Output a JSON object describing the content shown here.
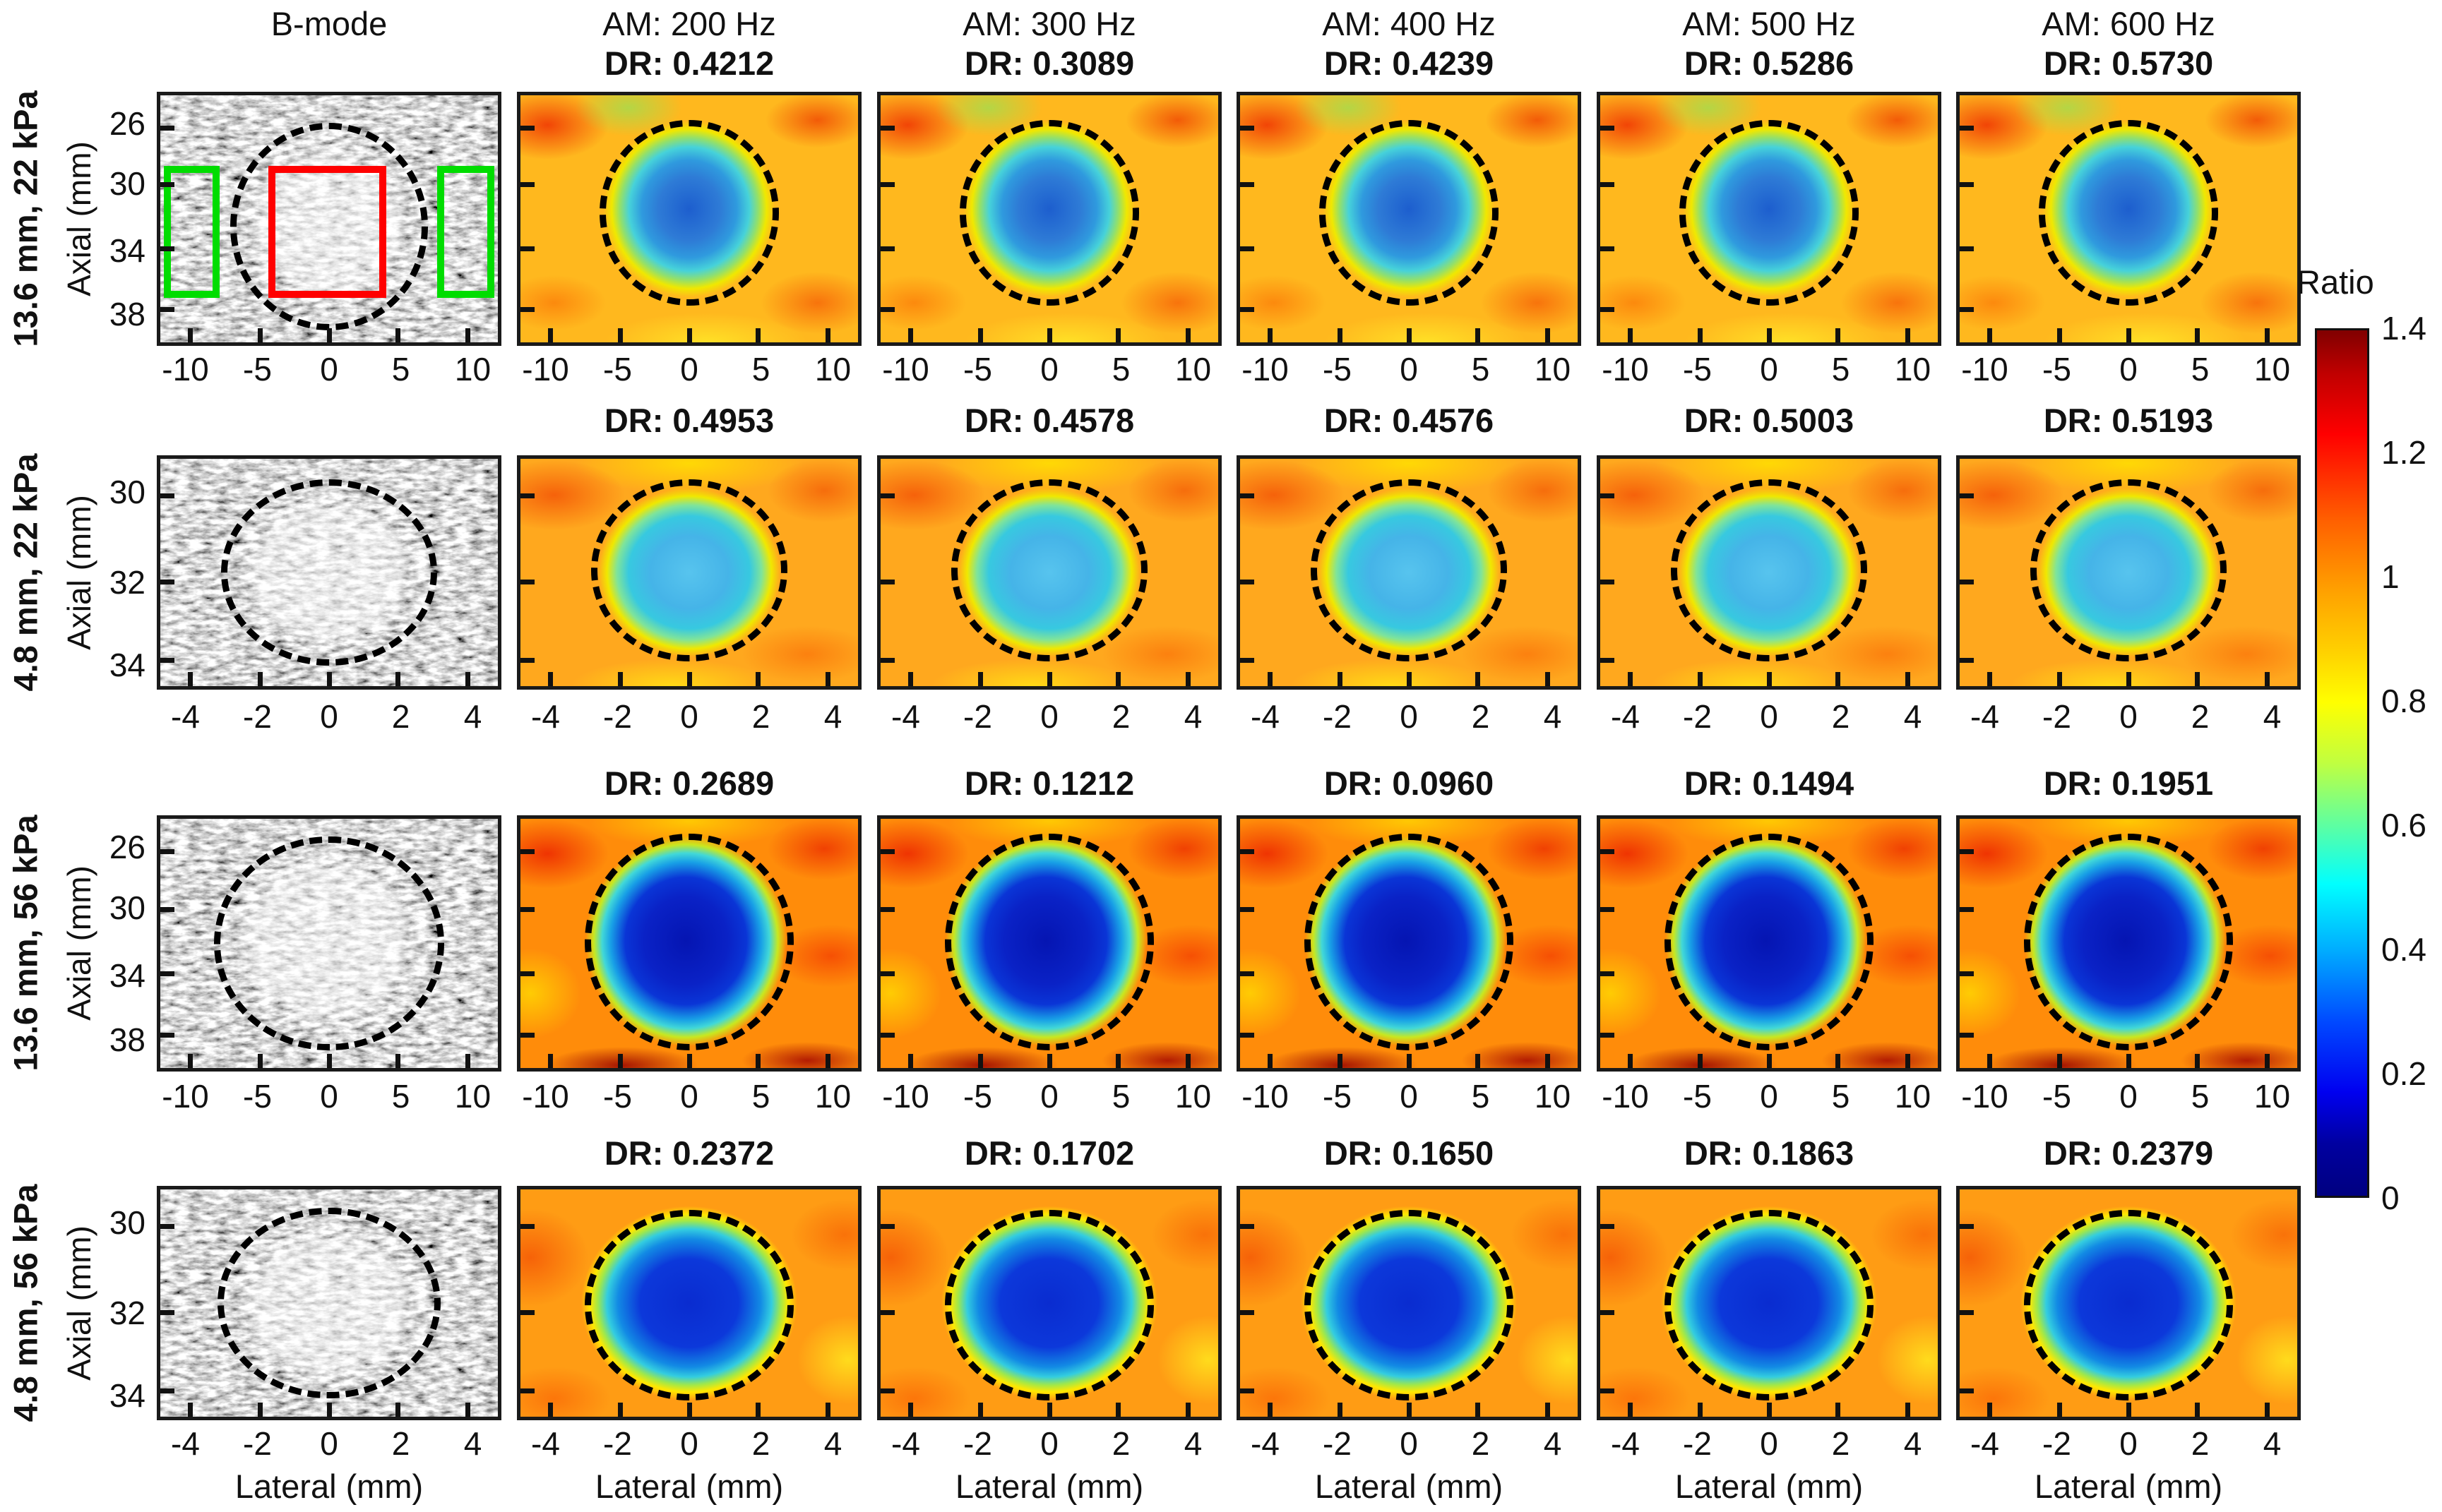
{
  "figure": {
    "columns": [
      {
        "title": "B-mode"
      },
      {
        "title": "AM: 200 Hz"
      },
      {
        "title": "AM: 300 Hz"
      },
      {
        "title": "AM: 400 Hz"
      },
      {
        "title": "AM: 500 Hz"
      },
      {
        "title": "AM: 600 Hz"
      }
    ],
    "rows": [
      {
        "label": "13.6 mm, 22 kPa",
        "ylabel": "Axial (mm)",
        "yticks": [
          "26",
          "30",
          "34",
          "38"
        ],
        "xticks": [
          "-10",
          "-5",
          "0",
          "5",
          "10"
        ],
        "dr_labels": [
          "DR: 0.4212",
          "DR: 0.3089",
          "DR: 0.4239",
          "DR: 0.5286",
          "DR: 0.5730"
        ]
      },
      {
        "label": "4.8 mm, 22 kPa",
        "ylabel": "Axial (mm)",
        "yticks": [
          "30",
          "32",
          "34"
        ],
        "xticks": [
          "-4",
          "-2",
          "0",
          "2",
          "4"
        ],
        "dr_labels": [
          "DR: 0.4953",
          "DR: 0.4578",
          "DR: 0.4576",
          "DR: 0.5003",
          "DR: 0.5193"
        ]
      },
      {
        "label": "13.6 mm, 56 kPa",
        "ylabel": "Axial (mm)",
        "yticks": [
          "26",
          "30",
          "34",
          "38"
        ],
        "xticks": [
          "-10",
          "-5",
          "0",
          "5",
          "10"
        ],
        "dr_labels": [
          "DR: 0.2689",
          "DR: 0.1212",
          "DR: 0.0960",
          "DR: 0.1494",
          "DR: 0.1951"
        ]
      },
      {
        "label": "4.8 mm, 56 kPa",
        "ylabel": "Axial (mm)",
        "yticks": [
          "30",
          "32",
          "34"
        ],
        "xticks": [
          "-4",
          "-2",
          "0",
          "2",
          "4"
        ],
        "dr_labels": [
          "DR: 0.2372",
          "DR: 0.1702",
          "DR: 0.1650",
          "DR: 0.1863",
          "DR: 0.2379"
        ]
      }
    ],
    "xlabel": "Lateral (mm)",
    "colorbar": {
      "label": "Ratio",
      "ticks": [
        "1.4",
        "1.2",
        "1",
        "0.8",
        "0.6",
        "0.4",
        "0.2",
        "0"
      ]
    }
  },
  "chart_data": {
    "type": "heatmap",
    "columns": [
      "B-mode",
      "AM: 200 Hz",
      "AM: 300 Hz",
      "AM: 400 Hz",
      "AM: 500 Hz",
      "AM: 600 Hz"
    ],
    "am_frequencies_hz": [
      200,
      300,
      400,
      500,
      600
    ],
    "xlabel": "Lateral (mm)",
    "ylabel": "Axial (mm)",
    "rows": [
      {
        "condition": "13.6 mm, 22 kPa",
        "axial_ticks_mm": [
          26,
          30,
          34,
          38
        ],
        "lateral_ticks_mm": [
          -10,
          -5,
          0,
          5,
          10
        ],
        "dr_values": [
          0.4212,
          0.3089,
          0.4239,
          0.5286,
          0.573
        ]
      },
      {
        "condition": "4.8 mm, 22 kPa",
        "axial_ticks_mm": [
          30,
          32,
          34
        ],
        "lateral_ticks_mm": [
          -4,
          -2,
          0,
          2,
          4
        ],
        "dr_values": [
          0.4953,
          0.4578,
          0.4576,
          0.5003,
          0.5193
        ]
      },
      {
        "condition": "13.6 mm, 56 kPa",
        "axial_ticks_mm": [
          26,
          30,
          34,
          38
        ],
        "lateral_ticks_mm": [
          -10,
          -5,
          0,
          5,
          10
        ],
        "dr_values": [
          0.2689,
          0.1212,
          0.096,
          0.1494,
          0.1951
        ]
      },
      {
        "condition": "4.8 mm, 56 kPa",
        "axial_ticks_mm": [
          30,
          32,
          34
        ],
        "lateral_ticks_mm": [
          -4,
          -2,
          0,
          2,
          4
        ],
        "dr_values": [
          0.2372,
          0.1702,
          0.165,
          0.1863,
          0.2379
        ]
      }
    ],
    "colorbar": {
      "label": "Ratio",
      "min": 0,
      "max": 1.4,
      "tick_step": 0.2,
      "colormap": "jet"
    },
    "annotations": {
      "dashed_ellipse": "inclusion boundary on every panel",
      "red_rectangle": "inclusion ROI on first B-mode panel",
      "green_rectangles": "background ROIs on first B-mode panel"
    }
  }
}
